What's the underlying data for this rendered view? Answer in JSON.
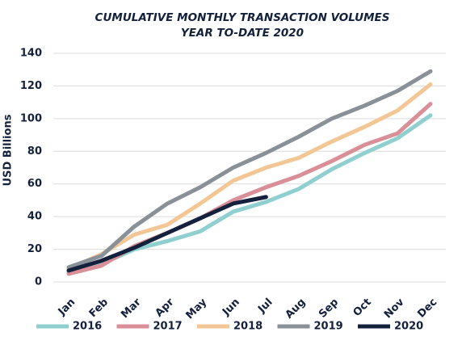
{
  "chart_data": {
    "type": "line",
    "title": "CUMULATIVE MONTHLY TRANSACTION VOLUMES",
    "subtitle": "YEAR TO-DATE 2020",
    "y_label": "USD Billions",
    "categories": [
      "Jan",
      "Feb",
      "Mar",
      "Apr",
      "May",
      "Jun",
      "Jul",
      "Aug",
      "Sep",
      "Oct",
      "Nov",
      "Dec"
    ],
    "series": [
      {
        "name": "2016",
        "color": "#8fcfcf",
        "values": [
          6,
          11,
          20,
          25,
          31,
          43,
          49,
          57,
          69,
          79,
          88,
          102
        ]
      },
      {
        "name": "2017",
        "color": "#d98e98",
        "values": [
          5,
          10,
          22,
          30,
          39,
          50,
          58,
          65,
          74,
          84,
          91,
          109
        ]
      },
      {
        "name": "2018",
        "color": "#f2c795",
        "values": [
          8,
          17,
          29,
          35,
          48,
          62,
          70,
          76,
          86,
          95,
          105,
          121
        ]
      },
      {
        "name": "2019",
        "color": "#8a9098",
        "values": [
          9,
          16,
          34,
          48,
          58,
          70,
          79,
          89,
          100,
          108,
          117,
          129
        ]
      },
      {
        "name": "2020",
        "color": "#14213d",
        "values": [
          7,
          13,
          21,
          30,
          39,
          48,
          52,
          null,
          null,
          null,
          null,
          null
        ]
      }
    ],
    "ylim": [
      0,
      140
    ],
    "yticks": [
      0,
      20,
      40,
      60,
      80,
      100,
      120,
      140
    ],
    "grid": true,
    "legend": "bottom"
  }
}
